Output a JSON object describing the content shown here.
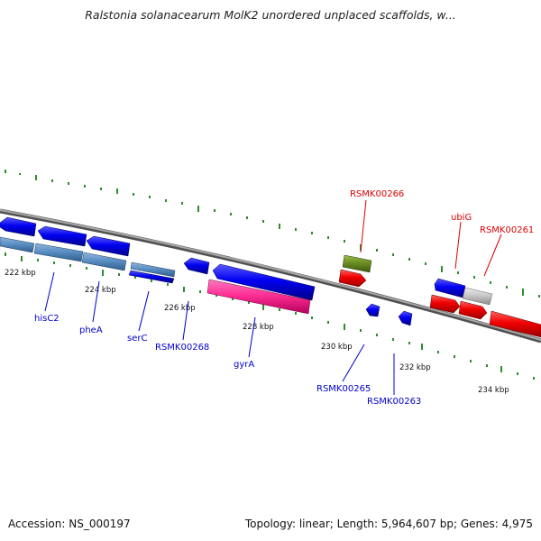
{
  "title": "Ralstonia solanacearum MolK2 unordered unplaced scaffolds, w...",
  "footer": {
    "accession": "Accession: NS_000197",
    "summary": "Topology: linear; Length: 5,964,607 bp; Genes: 4,975"
  },
  "colors": {
    "backbone": "#808080",
    "forward_strand": "#0000ff",
    "reverse_strand": "#ff0000",
    "pseudo_gene": "#5b8fc4",
    "rna_gene": "#ff3399",
    "other_gene": "#6b8e23",
    "unknown_gene": "#c8c8c8",
    "tick": "#2e8b2e",
    "label_forward": "#0000cc",
    "label_reverse": "#dd0000"
  },
  "scale": {
    "tick_labels": [
      "222 kbp",
      "224 kbp",
      "226 kbp",
      "228 kbp",
      "230 kbp",
      "232 kbp",
      "234 kbp"
    ]
  },
  "gene_labels": [
    {
      "text": "RSMK00266",
      "strand": "reverse"
    },
    {
      "text": "ubiG",
      "strand": "reverse"
    },
    {
      "text": "RSMK00261",
      "strand": "reverse"
    },
    {
      "text": "hisC2",
      "strand": "forward"
    },
    {
      "text": "pheA",
      "strand": "forward"
    },
    {
      "text": "serC",
      "strand": "forward"
    },
    {
      "text": "RSMK00268",
      "strand": "forward"
    },
    {
      "text": "gyrA",
      "strand": "forward"
    },
    {
      "text": "RSMK00265",
      "strand": "forward"
    },
    {
      "text": "RSMK00263",
      "strand": "forward"
    }
  ]
}
